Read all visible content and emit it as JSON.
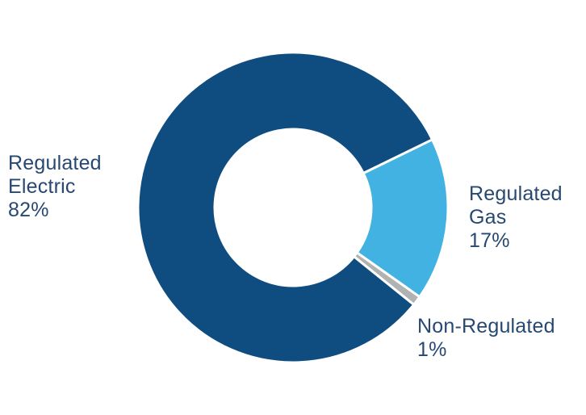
{
  "chart_data": {
    "type": "donut",
    "series": [
      {
        "name": "Regulated Electric",
        "name_lines": [
          "Regulated",
          "Electric"
        ],
        "value": 82,
        "value_label": "82%",
        "color": "#0F4D80"
      },
      {
        "name": "Regulated Gas",
        "name_lines": [
          "Regulated",
          "Gas"
        ],
        "value": 17,
        "value_label": "17%",
        "color": "#41B2E2"
      },
      {
        "name": "Non-Regulated",
        "name_lines": [
          "Non-Regulated"
        ],
        "value": 1,
        "value_label": "1%",
        "color": "#B1B3B2"
      }
    ],
    "start_angle_deg": 64,
    "draw_order": [
      1,
      2,
      0
    ],
    "inner_radius_ratio": 0.505,
    "slice_border_color": "#FFFFFF",
    "background_color": "#FFFFFF",
    "label_text_color": "#274971",
    "legend_position": "outside-labels"
  }
}
